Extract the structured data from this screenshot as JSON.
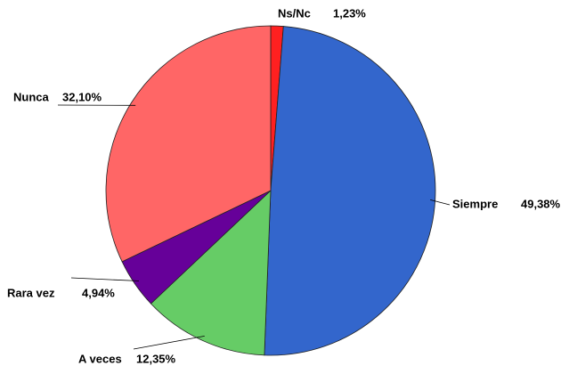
{
  "chart_data": {
    "type": "pie",
    "categories": [
      "Ns/Nc",
      "Siempre",
      "A veces",
      "Rara vez",
      "Nunca"
    ],
    "values": [
      1.23,
      49.38,
      12.35,
      4.94,
      32.1
    ],
    "value_labels": [
      "1,23%",
      "49,38%",
      "12,35%",
      "4,94%",
      "32,10%"
    ],
    "colors": [
      "#ff2020",
      "#3366cc",
      "#66cc66",
      "#660099",
      "#ff6666"
    ],
    "start_angle": 90,
    "direction": "clockwise"
  }
}
